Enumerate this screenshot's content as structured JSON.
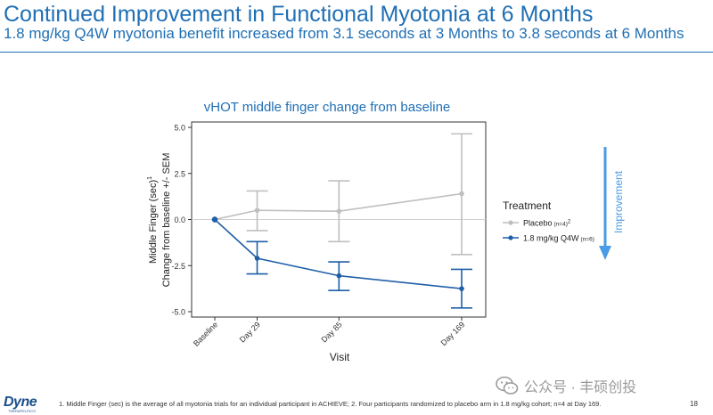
{
  "header": {
    "title": "Continued Improvement in Functional Myotonia at 6 Months",
    "subtitle": "1.8 mg/kg Q4W myotonia benefit increased from 3.1 seconds at 3 Months to 3.8 seconds at 6 Months"
  },
  "chart_data": {
    "type": "line",
    "title": "vHOT middle finger change from baseline",
    "xlabel": "Visit",
    "ylabel_line1": "Middle Finger (sec)",
    "ylabel_sup": "1",
    "ylabel_line2": "Change from baseline +/- SEM",
    "categories": [
      "Baseline",
      "Day 29",
      "Day 85",
      "Day 169"
    ],
    "category_days": [
      0,
      29,
      85,
      169
    ],
    "ylim": [
      -5.0,
      5.0
    ],
    "yticks": [
      -5.0,
      -2.5,
      0.0,
      2.5,
      5.0
    ],
    "ytick_labels": [
      "-5.0",
      "-2.5",
      "0.0",
      "2.5",
      "5.0"
    ],
    "reference_line": 0,
    "legend_title": "Treatment",
    "series": [
      {
        "name": "Placebo",
        "note": "(n=4)",
        "sup": "2",
        "color": "#bfbfbf",
        "values": [
          0.0,
          0.5,
          0.45,
          1.4
        ],
        "err_low": [
          0.0,
          -0.6,
          -1.2,
          -1.9
        ],
        "err_high": [
          0.0,
          1.55,
          2.1,
          4.65
        ]
      },
      {
        "name": "1.8 mg/kg Q4W",
        "note": "(n=6)",
        "sup": "",
        "color": "#1f5fa8",
        "values": [
          0.0,
          -2.1,
          -3.05,
          -3.75
        ],
        "err_low": [
          0.0,
          -2.95,
          -3.85,
          -4.8
        ],
        "err_high": [
          0.0,
          -1.2,
          -2.3,
          -2.7
        ]
      }
    ],
    "arrow_label": "Improvement",
    "arrow_color": "#4a9be6"
  },
  "footer": {
    "logo": "Dyne",
    "logo_sub": "THERAPEUTICS",
    "footnote": "1. Middle Finger (sec) is the average of all myotonia trials for an individual participant in ACHIEVE; 2. Four participants randomized to placebo arm in 1.8 mg/kg cohort; n=4 at Day 169.",
    "page_number": "18",
    "watermark": "公众号 · 丰硕创投"
  }
}
